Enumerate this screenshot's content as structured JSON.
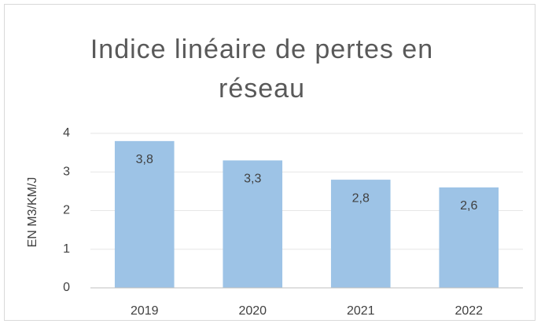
{
  "chart_data": {
    "type": "bar",
    "title": "Indice linéaire de pertes en réseau",
    "y_label": "EN M3/KM/J",
    "categories": [
      "2019",
      "2020",
      "2021",
      "2022"
    ],
    "values": [
      3.8,
      3.3,
      2.8,
      2.6
    ],
    "value_labels": [
      "3,8",
      "3,3",
      "2,8",
      "2,6"
    ],
    "color": "#9dc3e6",
    "ylim": [
      0,
      4
    ],
    "yticks": [
      0,
      1,
      2,
      3,
      4
    ],
    "grid": true
  }
}
